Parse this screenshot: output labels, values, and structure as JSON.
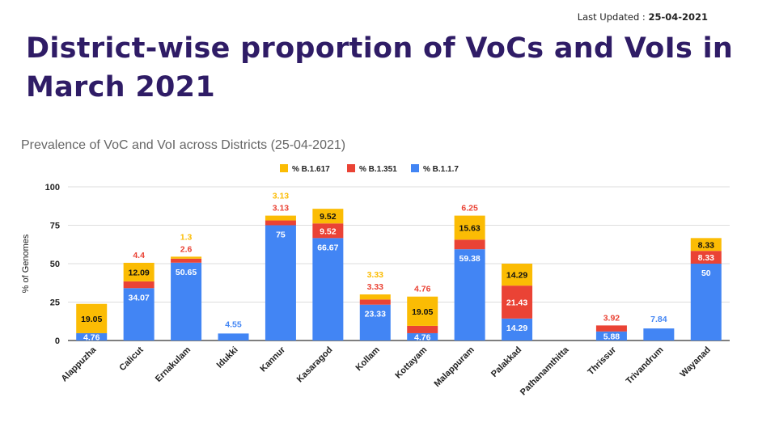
{
  "header": {
    "last_updated_label": "Last Updated : ",
    "last_updated_value": "25-04-2021",
    "title": "District-wise proportion of VoCs and VoIs in March 2021"
  },
  "chart_data": {
    "type": "bar",
    "stacked": true,
    "title": "Prevalence of VoC and VoI across Districts (25-04-2021)",
    "xlabel": "",
    "ylabel": "% of Genomes",
    "ylim": [
      0,
      100
    ],
    "yticks": [
      0,
      25,
      50,
      75,
      100
    ],
    "grid": true,
    "legend_position": "top",
    "categories": [
      "Alappuzha",
      "Calicut",
      "Ernakulam",
      "Idukki",
      "Kannur",
      "Kasaragod",
      "Kollam",
      "Kottayam",
      "Malappuram",
      "Palakkad",
      "Pathanamthitta",
      "Thrissur",
      "Trivandrum",
      "Wayanad"
    ],
    "series": [
      {
        "name": "% B.1.1.7",
        "color": "#4285f4",
        "values": [
          4.76,
          34.07,
          50.65,
          4.55,
          75,
          66.67,
          23.33,
          4.76,
          59.38,
          14.29,
          0,
          5.88,
          7.84,
          50
        ],
        "labels": [
          "4.76",
          "34.07",
          "50.65",
          "4.55",
          "75",
          "66.67",
          "23.33",
          "4.76",
          "59.38",
          "14.29",
          "",
          "5.88",
          "7.84",
          "50"
        ]
      },
      {
        "name": "% B.1.351",
        "color": "#ea4335",
        "values": [
          0,
          4.4,
          2.6,
          0,
          3.13,
          9.52,
          3.33,
          4.76,
          6.25,
          21.43,
          0,
          3.92,
          0,
          8.33
        ],
        "labels": [
          "",
          "4.4",
          "2.6",
          "",
          "3.13",
          "9.52",
          "3.33",
          "4.76",
          "6.25",
          "21.43",
          "",
          "3.92",
          "",
          "8.33"
        ]
      },
      {
        "name": "% B.1.617",
        "color": "#fbbc04",
        "values": [
          19.05,
          12.09,
          1.3,
          0,
          3.13,
          9.52,
          3.33,
          19.05,
          15.63,
          14.29,
          0,
          0,
          0,
          8.33
        ],
        "labels": [
          "19.05",
          "12.09",
          "1.3",
          "",
          "3.13",
          "9.52",
          "3.33",
          "19.05",
          "15.63",
          "14.29",
          "",
          "",
          "",
          "8.33"
        ]
      }
    ],
    "legend_order": [
      "% B.1.617",
      "% B.1.351",
      "% B.1.1.7"
    ]
  }
}
